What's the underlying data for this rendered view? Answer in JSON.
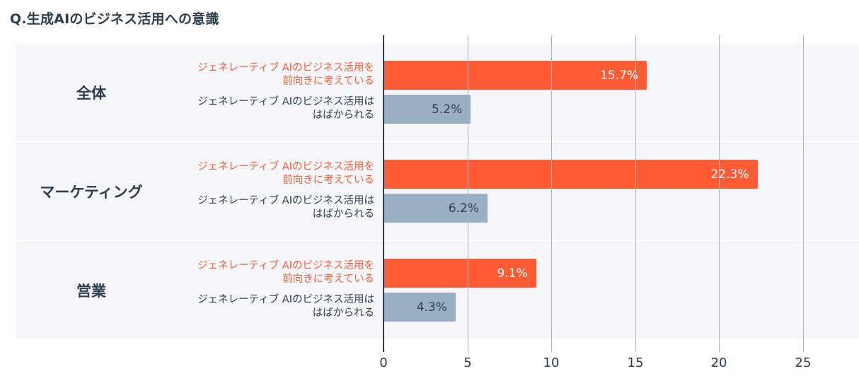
{
  "title": "Q.生成AIのビジネス活用への意識",
  "chart_data": {
    "type": "bar",
    "orientation": "horizontal",
    "groups": [
      {
        "name": "全体",
        "bars": [
          {
            "label": "ジェネレーティブ AIのビジネス活用を\n前向きに考えている",
            "value": 15.7,
            "display": "15.7%",
            "kind": "pos"
          },
          {
            "label": "ジェネレーティブ AIのビジネス活用は\nはばかられる",
            "value": 5.2,
            "display": "5.2%",
            "kind": "neg"
          }
        ]
      },
      {
        "name": "マーケティング",
        "bars": [
          {
            "label": "ジェネレーティブ AIのビジネス活用を\n前向きに考えている",
            "value": 22.3,
            "display": "22.3%",
            "kind": "pos"
          },
          {
            "label": "ジェネレーティブ AIのビジネス活用は\nはばかられる",
            "value": 6.2,
            "display": "6.2%",
            "kind": "neg"
          }
        ]
      },
      {
        "name": "営業",
        "bars": [
          {
            "label": "ジェネレーティブ AIのビジネス活用を\n前向きに考えている",
            "value": 9.1,
            "display": "9.1%",
            "kind": "pos"
          },
          {
            "label": "ジェネレーティブ AIのビジネス活用は\nはばかられる",
            "value": 4.3,
            "display": "4.3%",
            "kind": "neg"
          }
        ]
      }
    ],
    "xlim": [
      0,
      28.5
    ],
    "xticks": [
      0,
      5,
      10,
      15,
      20,
      25
    ],
    "grid": true,
    "colors": {
      "positive": "#ff5c35",
      "negative": "#99afc4",
      "axis": "#2d3e50",
      "band": "#f5f6f9"
    }
  }
}
